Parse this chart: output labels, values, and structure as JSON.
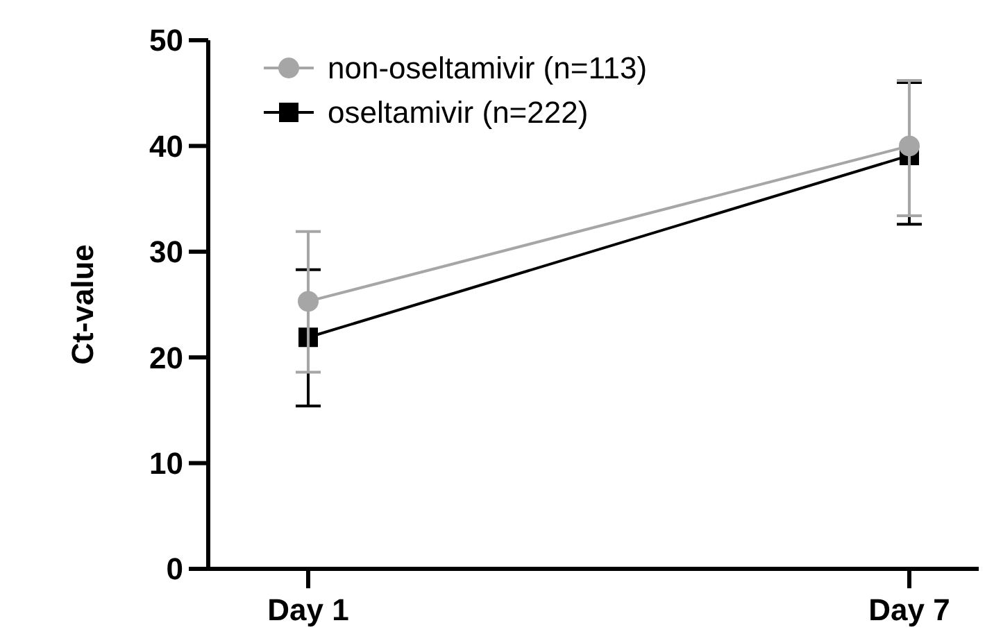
{
  "chart_data": {
    "type": "line",
    "ylabel": "Ct-value",
    "categories": [
      "Day 1",
      "Day 7"
    ],
    "ylim": [
      0,
      50
    ],
    "yticks": [
      0,
      10,
      20,
      30,
      40,
      50
    ],
    "legend": "top left",
    "grid": false,
    "series": [
      {
        "name": "non-oseltamivir (n=113)",
        "color": "#a6a6a6",
        "marker": "circle",
        "values": [
          25.3,
          40.0
        ],
        "errors": [
          [
            18.6,
            31.9
          ],
          [
            33.4,
            46.2
          ]
        ]
      },
      {
        "name": "oseltamivir (n=222)",
        "color": "#000000",
        "marker": "square",
        "values": [
          21.9,
          39.1
        ],
        "errors": [
          [
            15.4,
            28.3
          ],
          [
            32.6,
            46.0
          ]
        ]
      }
    ]
  }
}
